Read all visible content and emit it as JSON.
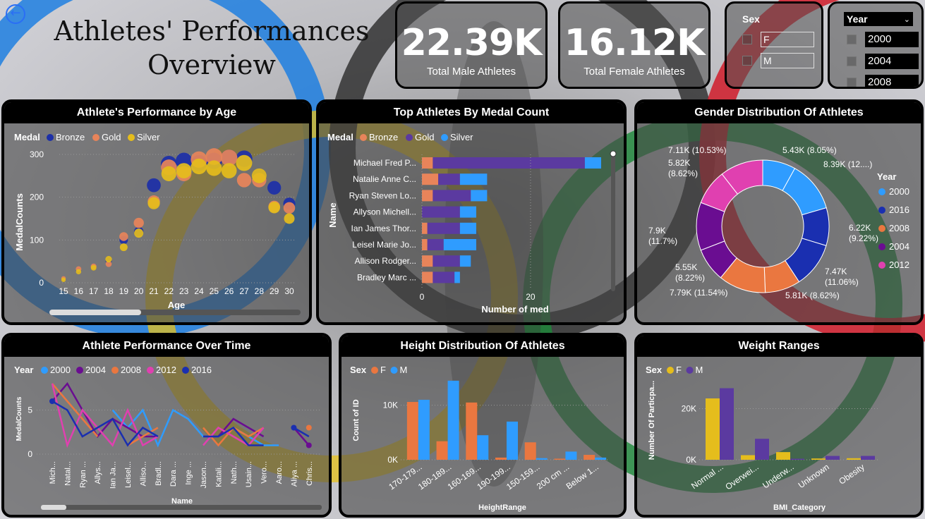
{
  "title_line1": "Athletes' Performances",
  "title_line2": "Overview",
  "kpi_male": {
    "value": "22.39K",
    "label": "Total Male Athletes"
  },
  "kpi_female": {
    "value": "16.12K",
    "label": "Total Female Athletes"
  },
  "sex_slicer": {
    "title": "Sex",
    "options": [
      "F",
      "M"
    ]
  },
  "year_slicer": {
    "title": "Year",
    "options": [
      "2000",
      "2004",
      "2008"
    ]
  },
  "colors": {
    "bronze": "#1c2fa8",
    "gold": "#e8845a",
    "silver": "#e5bd1c",
    "purple": "#5b3aa0",
    "lightblue": "#2f9cff",
    "orange": "#ea7740",
    "darkblue": "#1a2fb0",
    "darkpurple": "#6a0d91",
    "pink": "#e040b0"
  },
  "panels": {
    "age": {
      "title": "Athlete's Performance by Age"
    },
    "top": {
      "title": "Top Athletes By Medal Count"
    },
    "gender": {
      "title": "Gender Distribution Of Athletes"
    },
    "time": {
      "title": "Athlete Performance Over Time"
    },
    "height": {
      "title": "Height Distribution Of Athletes"
    },
    "weight": {
      "title": "Weight Ranges"
    }
  },
  "chart_data": [
    {
      "type": "scatter",
      "title": "Athlete's Performance by Age",
      "xlabel": "Age",
      "ylabel": "MedalCounts",
      "legend_title": "Medal",
      "ylim": [
        0,
        300
      ],
      "yticks": [
        0,
        100,
        200,
        300
      ],
      "x": [
        15,
        16,
        17,
        18,
        19,
        20,
        21,
        22,
        23,
        24,
        25,
        26,
        27,
        28,
        29,
        30
      ],
      "series": [
        {
          "name": "Bronze",
          "values": [
            8,
            28,
            35,
            52,
            100,
            120,
            228,
            278,
            285,
            280,
            285,
            292,
            290,
            248,
            222,
            185
          ]
        },
        {
          "name": "Gold",
          "values": [
            10,
            32,
            38,
            44,
            108,
            140,
            190,
            270,
            255,
            288,
            295,
            292,
            240,
            240,
            178,
            175
          ]
        },
        {
          "name": "Silver",
          "values": [
            7,
            26,
            35,
            55,
            83,
            116,
            186,
            255,
            262,
            272,
            268,
            262,
            280,
            250,
            176,
            150
          ]
        }
      ]
    },
    {
      "type": "bar",
      "orientation": "horizontal-stacked",
      "title": "Top Athletes By Medal Count",
      "xlabel": "Number of med",
      "ylabel": "Name",
      "legend_title": "Medal",
      "xlim": [
        0,
        33
      ],
      "xticks": [
        0,
        20
      ],
      "categories": [
        "Michael Fred P...",
        "Natalie Anne C...",
        "Ryan Steven Lo...",
        "Allyson Michell...",
        "Ian James Thor...",
        "Leisel Marie Jo...",
        "Allison Rodger...",
        "Bradley Marc ..."
      ],
      "series": [
        {
          "name": "Bronze",
          "values": [
            2,
            3,
            2,
            0,
            1,
            1,
            2,
            2
          ]
        },
        {
          "name": "Gold",
          "values": [
            28,
            4,
            7,
            7,
            6,
            3,
            5,
            4
          ]
        },
        {
          "name": "Silver",
          "values": [
            3,
            5,
            3,
            3,
            3,
            6,
            2,
            1
          ]
        }
      ]
    },
    {
      "type": "pie",
      "title": "Gender Distribution Of Athletes",
      "legend_title": "Year",
      "legend": [
        "2000",
        "2016",
        "2008",
        "2004",
        "2012"
      ],
      "slices": [
        {
          "label": "5.43K (8.05%)",
          "value": 8.05,
          "year": "2000"
        },
        {
          "label": "8.39K (12....)",
          "value": 12.43,
          "year": "2000"
        },
        {
          "label": "6.22K (9.22%)",
          "value": 9.22,
          "year": "2016"
        },
        {
          "label": "7.47K (11.06%)",
          "value": 11.06,
          "year": "2016"
        },
        {
          "label": "5.81K (8.62%)",
          "value": 8.62,
          "year": "2008"
        },
        {
          "label": "7.79K (11.54%)",
          "value": 11.54,
          "year": "2008"
        },
        {
          "label": "5.55K (8.22%)",
          "value": 8.22,
          "year": "2004"
        },
        {
          "label": "7.9K (11.7%)",
          "value": 11.7,
          "year": "2004"
        },
        {
          "label": "5.82K (8.62%)",
          "value": 8.62,
          "year": "2012"
        },
        {
          "label": "7.11K (10.53%)",
          "value": 10.53,
          "year": "2012"
        }
      ]
    },
    {
      "type": "line",
      "title": "Athlete Performance Over Time",
      "xlabel": "Name",
      "ylabel": "MedalCounts",
      "legend_title": "Year",
      "ylim": [
        0,
        8
      ],
      "yticks": [
        0,
        5
      ],
      "categories": [
        "Mich...",
        "Natal...",
        "Ryan ...",
        "Allys...",
        "Ian Ja...",
        "Leisel...",
        "Alliso...",
        "Bradl...",
        "Dara ...",
        "Inge ...",
        "Jason...",
        "Katali...",
        "Nath...",
        "Usain...",
        "Vero...",
        "Aaro...",
        "Aliya ...",
        "Chris..."
      ],
      "series": [
        {
          "name": "2000",
          "values": [
            null,
            null,
            null,
            null,
            5,
            3,
            5,
            1,
            5,
            4,
            2,
            2,
            3,
            2,
            1,
            1,
            null,
            null
          ]
        },
        {
          "name": "2004",
          "values": [
            6,
            8,
            5,
            2,
            4,
            3,
            2,
            2,
            null,
            null,
            2,
            2,
            4,
            3,
            2,
            null,
            3,
            1
          ]
        },
        {
          "name": "2008",
          "values": [
            8,
            6,
            4,
            2,
            null,
            1,
            2,
            3,
            null,
            null,
            3,
            1,
            3,
            2,
            3,
            null,
            null,
            3
          ]
        },
        {
          "name": "2012",
          "values": [
            8,
            1,
            5,
            3,
            1,
            5,
            1,
            2,
            null,
            null,
            1,
            3,
            2,
            1,
            3,
            null,
            null,
            2
          ]
        },
        {
          "name": "2016",
          "values": [
            6,
            5,
            2,
            3,
            4,
            1,
            3,
            2,
            null,
            null,
            2,
            2,
            3,
            1,
            1,
            null,
            3,
            2
          ]
        }
      ]
    },
    {
      "type": "bar",
      "title": "Height Distribution Of Athletes",
      "xlabel": "HeightRange",
      "ylabel": "Count of ID",
      "legend_title": "Sex",
      "ylim": [
        0,
        15000
      ],
      "yticks": [
        0,
        10000
      ],
      "ytick_labels": [
        "0K",
        "10K"
      ],
      "categories": [
        "170-179...",
        "180-189...",
        "160-169...",
        "190-199...",
        "150-159...",
        "200 cm ...",
        "Below 1..."
      ],
      "series": [
        {
          "name": "F",
          "values": [
            10600,
            3400,
            10500,
            400,
            3200,
            200,
            900
          ]
        },
        {
          "name": "M",
          "values": [
            11000,
            14500,
            4500,
            7000,
            300,
            1500,
            400
          ]
        }
      ]
    },
    {
      "type": "bar",
      "title": "Weight Ranges",
      "xlabel": "BMI_Category",
      "ylabel": "Number Of Particpa...",
      "legend_title": "Sex",
      "ylim": [
        0,
        32000
      ],
      "yticks": [
        0,
        20000
      ],
      "ytick_labels": [
        "0K",
        "20K"
      ],
      "categories": [
        "Normal ...",
        "Overwei...",
        "Underw...",
        "Unknown",
        "Obesity"
      ],
      "series": [
        {
          "name": "F",
          "values": [
            24000,
            1800,
            3000,
            500,
            600
          ]
        },
        {
          "name": "M",
          "values": [
            28000,
            8200,
            400,
            1500,
            1500
          ]
        }
      ]
    }
  ]
}
